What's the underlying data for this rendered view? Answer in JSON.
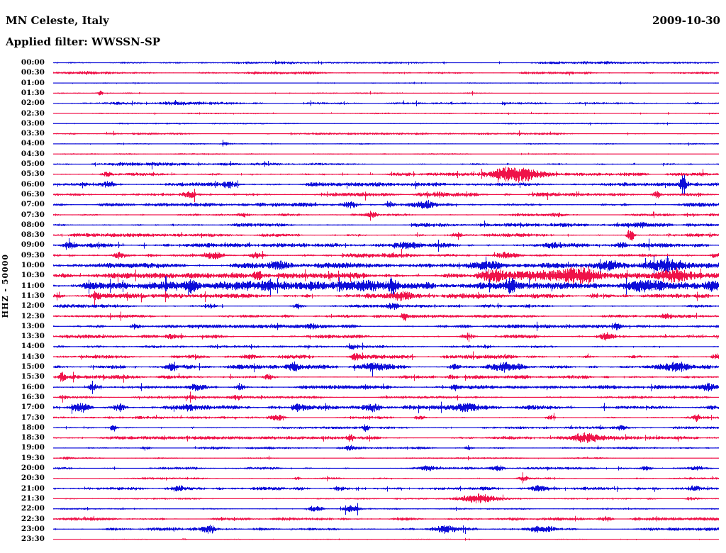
{
  "header": {
    "station": "MN Celeste, Italy",
    "date": "2009-10-30",
    "filter_label": "Applied filter: WWSSN-SP"
  },
  "axis": {
    "channel_label": "HHZ - 50000"
  },
  "chart_data": {
    "type": "line",
    "subtype": "helicorder-dayplot",
    "title": "MN Celeste, Italy",
    "date": "2009-10-30",
    "filter": "WWSSN-SP",
    "channel": "HHZ",
    "scale": 50000,
    "minutes_per_row": 30,
    "rows_count": 48,
    "time_start": "00:00",
    "time_end": "23:30",
    "legend_position": "none",
    "grid": false,
    "colors": {
      "hour_trace": "#0c0cd8",
      "half_hour_trace": "#ef1249",
      "text": "#000000",
      "background": "#ffffff"
    },
    "note": "level = baseline noise half-amplitude (px); events = bursts with t (minutes into row), a (half-amplitude px), w (duration, minutes)",
    "rows": [
      {
        "time": "00:00",
        "color": "blue",
        "level": 0.9,
        "events": [
          {
            "t": 9,
            "a": 1.2,
            "w": 3
          },
          {
            "t": 25,
            "a": 1,
            "w": 4
          }
        ]
      },
      {
        "time": "00:30",
        "color": "red",
        "level": 1.3,
        "events": [
          {
            "t": 1.5,
            "a": 1,
            "w": 2
          }
        ]
      },
      {
        "time": "01:00",
        "color": "blue",
        "level": 0.6,
        "events": []
      },
      {
        "time": "01:30",
        "color": "red",
        "level": 0.7,
        "events": [
          {
            "t": 2.1,
            "a": 3,
            "w": 0.2
          }
        ]
      },
      {
        "time": "02:00",
        "color": "blue",
        "level": 1.0,
        "events": [
          {
            "t": 5,
            "a": 1.2,
            "w": 4
          }
        ]
      },
      {
        "time": "02:30",
        "color": "red",
        "level": 0.7,
        "events": []
      },
      {
        "time": "03:00",
        "color": "blue",
        "level": 0.7,
        "events": []
      },
      {
        "time": "03:30",
        "color": "red",
        "level": 1.1,
        "events": []
      },
      {
        "time": "04:00",
        "color": "blue",
        "level": 0.7,
        "events": [
          {
            "t": 7.7,
            "a": 2,
            "w": 0.3
          }
        ]
      },
      {
        "time": "04:30",
        "color": "red",
        "level": 0.7,
        "events": []
      },
      {
        "time": "05:00",
        "color": "blue",
        "level": 1.2,
        "events": [
          {
            "t": 4,
            "a": 1,
            "w": 3
          }
        ]
      },
      {
        "time": "05:30",
        "color": "red",
        "level": 1.5,
        "events": [
          {
            "t": 2.4,
            "a": 2.5,
            "w": 0.3
          },
          {
            "t": 20.9,
            "a": 11,
            "w": 1.4
          }
        ]
      },
      {
        "time": "06:00",
        "color": "blue",
        "level": 1.8,
        "events": [
          {
            "t": 2.4,
            "a": 3,
            "w": 0.4
          },
          {
            "t": 8,
            "a": 4,
            "w": 0.5
          },
          {
            "t": 28.4,
            "a": 9,
            "w": 0.25
          }
        ]
      },
      {
        "time": "06:30",
        "color": "red",
        "level": 1.8,
        "events": [
          {
            "t": 6.1,
            "a": 3.5,
            "w": 0.4
          },
          {
            "t": 17.3,
            "a": 3,
            "w": 0.4
          },
          {
            "t": 27.2,
            "a": 6,
            "w": 0.25
          }
        ]
      },
      {
        "time": "07:00",
        "color": "blue",
        "level": 1.8,
        "events": [
          {
            "t": 13.4,
            "a": 4,
            "w": 0.5
          },
          {
            "t": 15.2,
            "a": 3.5,
            "w": 0.4
          },
          {
            "t": 16.8,
            "a": 6,
            "w": 0.8
          }
        ]
      },
      {
        "time": "07:30",
        "color": "red",
        "level": 1.3,
        "events": [
          {
            "t": 8.5,
            "a": 2,
            "w": 0.4
          },
          {
            "t": 14.4,
            "a": 2.5,
            "w": 0.4
          },
          {
            "t": 22.7,
            "a": 2,
            "w": 0.4
          }
        ]
      },
      {
        "time": "08:00",
        "color": "blue",
        "level": 1.6,
        "events": [
          {
            "t": 22,
            "a": 1.5,
            "w": 5
          },
          {
            "t": 26.5,
            "a": 3,
            "w": 0.4
          }
        ]
      },
      {
        "time": "08:30",
        "color": "red",
        "level": 1.7,
        "events": [
          {
            "t": 1,
            "a": 2.5,
            "w": 0.4
          },
          {
            "t": 18.1,
            "a": 3,
            "w": 0.4
          },
          {
            "t": 26,
            "a": 12,
            "w": 0.2
          }
        ]
      },
      {
        "time": "09:00",
        "color": "blue",
        "level": 2.0,
        "events": [
          {
            "t": 0.8,
            "a": 3,
            "w": 0.4
          },
          {
            "t": 16,
            "a": 5,
            "w": 0.8
          },
          {
            "t": 22.5,
            "a": 3,
            "w": 0.5
          },
          {
            "t": 25.7,
            "a": 3,
            "w": 0.5
          }
        ]
      },
      {
        "time": "09:30",
        "color": "red",
        "level": 2.0,
        "events": [
          {
            "t": 3,
            "a": 4,
            "w": 0.5
          },
          {
            "t": 7.2,
            "a": 5,
            "w": 0.6
          },
          {
            "t": 9.1,
            "a": 4,
            "w": 0.4
          },
          {
            "t": 20.4,
            "a": 4,
            "w": 0.8
          },
          {
            "t": 29.8,
            "a": 3,
            "w": 0.3
          }
        ]
      },
      {
        "time": "10:00",
        "color": "blue",
        "level": 2.5,
        "events": [
          {
            "t": 10.1,
            "a": 4,
            "w": 0.6
          },
          {
            "t": 19.6,
            "a": 4,
            "w": 0.8
          },
          {
            "t": 25.1,
            "a": 7,
            "w": 1
          },
          {
            "t": 27.6,
            "a": 8,
            "w": 1.2
          }
        ]
      },
      {
        "time": "10:30",
        "color": "red",
        "level": 2.5,
        "events": [
          {
            "t": 9.2,
            "a": 6,
            "w": 0.25
          },
          {
            "t": 23,
            "a": 5,
            "w": 5
          },
          {
            "t": 19.8,
            "a": 7,
            "w": 0.8
          },
          {
            "t": 23.8,
            "a": 7,
            "w": 0.8
          },
          {
            "t": 28,
            "a": 7,
            "w": 0.9
          }
        ]
      },
      {
        "time": "11:00",
        "color": "blue",
        "level": 3.0,
        "events": [
          {
            "t": 11,
            "a": 5,
            "w": 8
          },
          {
            "t": 6.2,
            "a": 7,
            "w": 0.3
          },
          {
            "t": 15.3,
            "a": 8,
            "w": 0.3
          },
          {
            "t": 20.6,
            "a": 10,
            "w": 0.3
          },
          {
            "t": 26.7,
            "a": 5,
            "w": 1.5
          },
          {
            "t": 29.7,
            "a": 6,
            "w": 0.3
          }
        ]
      },
      {
        "time": "11:30",
        "color": "red",
        "level": 2.2,
        "events": [
          {
            "t": 1.9,
            "a": 3,
            "w": 0.4
          },
          {
            "t": 15.7,
            "a": 4,
            "w": 0.6
          },
          {
            "t": 24.4,
            "a": 3,
            "w": 0.4
          }
        ]
      },
      {
        "time": "12:00",
        "color": "blue",
        "level": 1.5,
        "events": [
          {
            "t": 7,
            "a": 3,
            "w": 0.4
          },
          {
            "t": 11,
            "a": 3,
            "w": 0.4
          },
          {
            "t": 15.3,
            "a": 3.5,
            "w": 0.4
          }
        ]
      },
      {
        "time": "12:30",
        "color": "red",
        "level": 1.4,
        "events": [
          {
            "t": 15.8,
            "a": 6,
            "w": 0.2
          },
          {
            "t": 27.6,
            "a": 2.5,
            "w": 0.4
          }
        ]
      },
      {
        "time": "13:00",
        "color": "blue",
        "level": 1.7,
        "events": [
          {
            "t": 3.7,
            "a": 3,
            "w": 0.4
          },
          {
            "t": 11.7,
            "a": 3,
            "w": 0.4
          },
          {
            "t": 25.4,
            "a": 5,
            "w": 0.2
          }
        ]
      },
      {
        "time": "13:30",
        "color": "red",
        "level": 1.7,
        "events": [
          {
            "t": 5.3,
            "a": 3,
            "w": 0.4
          },
          {
            "t": 18.7,
            "a": 3,
            "w": 0.4
          },
          {
            "t": 24.9,
            "a": 6,
            "w": 0.5
          }
        ]
      },
      {
        "time": "14:00",
        "color": "blue",
        "level": 1.2,
        "events": [
          {
            "t": 13.5,
            "a": 3,
            "w": 0.3
          },
          {
            "t": 19.5,
            "a": 2,
            "w": 0.3
          }
        ]
      },
      {
        "time": "14:30",
        "color": "red",
        "level": 1.8,
        "events": [
          {
            "t": 8.8,
            "a": 4,
            "w": 0.4
          },
          {
            "t": 13.6,
            "a": 4,
            "w": 0.3
          },
          {
            "t": 29.9,
            "a": 4,
            "w": 0.3
          }
        ]
      },
      {
        "time": "15:00",
        "color": "blue",
        "level": 2.0,
        "events": [
          {
            "t": 5.4,
            "a": 6,
            "w": 0.25
          },
          {
            "t": 10.9,
            "a": 4,
            "w": 0.4
          },
          {
            "t": 14.5,
            "a": 5,
            "w": 0.8
          },
          {
            "t": 18.1,
            "a": 4,
            "w": 0.4
          },
          {
            "t": 20.4,
            "a": 6,
            "w": 1.2
          },
          {
            "t": 28,
            "a": 5,
            "w": 0.8
          }
        ]
      },
      {
        "time": "15:30",
        "color": "red",
        "level": 1.8,
        "events": [
          {
            "t": 0.4,
            "a": 7,
            "w": 0.25
          },
          {
            "t": 9.7,
            "a": 5,
            "w": 0.3
          },
          {
            "t": 17.9,
            "a": 3,
            "w": 0.4
          }
        ]
      },
      {
        "time": "16:00",
        "color": "blue",
        "level": 1.8,
        "events": [
          {
            "t": 1.8,
            "a": 4,
            "w": 0.4
          },
          {
            "t": 6.5,
            "a": 4,
            "w": 0.4
          },
          {
            "t": 8.4,
            "a": 6,
            "w": 0.25
          },
          {
            "t": 18.1,
            "a": 4,
            "w": 0.4
          },
          {
            "t": 29.5,
            "a": 4,
            "w": 0.4
          }
        ]
      },
      {
        "time": "16:30",
        "color": "red",
        "level": 1.2,
        "events": [
          {
            "t": 0.5,
            "a": 3,
            "w": 0.3
          },
          {
            "t": 6.2,
            "a": 2.5,
            "w": 0.3
          },
          {
            "t": 8.3,
            "a": 2.5,
            "w": 0.3
          }
        ]
      },
      {
        "time": "17:00",
        "color": "blue",
        "level": 2.0,
        "events": [
          {
            "t": 1.3,
            "a": 6,
            "w": 0.5
          },
          {
            "t": 3,
            "a": 4,
            "w": 0.4
          },
          {
            "t": 6.1,
            "a": 4,
            "w": 0.4
          },
          {
            "t": 11,
            "a": 4,
            "w": 0.5
          },
          {
            "t": 14.4,
            "a": 4,
            "w": 0.4
          },
          {
            "t": 18.8,
            "a": 5,
            "w": 1
          }
        ]
      },
      {
        "time": "17:30",
        "color": "red",
        "level": 1.3,
        "events": [
          {
            "t": 10.1,
            "a": 3,
            "w": 0.4
          },
          {
            "t": 16.5,
            "a": 3,
            "w": 0.4
          },
          {
            "t": 22.4,
            "a": 3.5,
            "w": 0.3
          },
          {
            "t": 29,
            "a": 4,
            "w": 0.2
          }
        ]
      },
      {
        "time": "18:00",
        "color": "blue",
        "level": 1.2,
        "events": [
          {
            "t": 2.7,
            "a": 5,
            "w": 0.2
          },
          {
            "t": 14.1,
            "a": 5,
            "w": 0.2
          },
          {
            "t": 25.6,
            "a": 2.5,
            "w": 0.4
          }
        ]
      },
      {
        "time": "18:30",
        "color": "red",
        "level": 1.5,
        "events": [
          {
            "t": 13.4,
            "a": 4,
            "w": 0.2
          },
          {
            "t": 24,
            "a": 7,
            "w": 1
          }
        ]
      },
      {
        "time": "19:00",
        "color": "blue",
        "level": 1.3,
        "events": [
          {
            "t": 4.2,
            "a": 2.5,
            "w": 0.3
          },
          {
            "t": 13.3,
            "a": 3,
            "w": 0.3
          },
          {
            "t": 18.7,
            "a": 4,
            "w": 0.25
          }
        ]
      },
      {
        "time": "19:30",
        "color": "red",
        "level": 0.8,
        "events": [
          {
            "t": 0.6,
            "a": 2,
            "w": 0.3
          }
        ]
      },
      {
        "time": "20:00",
        "color": "blue",
        "level": 1.2,
        "events": [
          {
            "t": 16.9,
            "a": 3.5,
            "w": 0.4
          },
          {
            "t": 20,
            "a": 3,
            "w": 0.4
          },
          {
            "t": 26.7,
            "a": 3.5,
            "w": 0.4
          },
          {
            "t": 29,
            "a": 2.5,
            "w": 0.3
          }
        ]
      },
      {
        "time": "20:30",
        "color": "red",
        "level": 1.0,
        "events": [
          {
            "t": 11,
            "a": 2,
            "w": 0.3
          },
          {
            "t": 21.2,
            "a": 2.5,
            "w": 0.3
          }
        ]
      },
      {
        "time": "21:00",
        "color": "blue",
        "level": 1.6,
        "events": [
          {
            "t": 5.6,
            "a": 3,
            "w": 0.4
          },
          {
            "t": 12.9,
            "a": 3,
            "w": 0.4
          },
          {
            "t": 21.9,
            "a": 3,
            "w": 0.4
          },
          {
            "t": 28.9,
            "a": 3,
            "w": 0.4
          }
        ]
      },
      {
        "time": "21:30",
        "color": "red",
        "level": 0.9,
        "events": [
          {
            "t": 19.2,
            "a": 6,
            "w": 1.1
          },
          {
            "t": 28.8,
            "a": 2,
            "w": 0.5
          }
        ]
      },
      {
        "time": "22:00",
        "color": "blue",
        "level": 0.8,
        "events": [
          {
            "t": 11.8,
            "a": 4,
            "w": 0.5
          },
          {
            "t": 13.4,
            "a": 4.5,
            "w": 0.5
          }
        ]
      },
      {
        "time": "22:30",
        "color": "red",
        "level": 1.5,
        "events": [
          {
            "t": 24.9,
            "a": 3,
            "w": 0.4
          }
        ]
      },
      {
        "time": "23:00",
        "color": "blue",
        "level": 1.5,
        "events": [
          {
            "t": 7,
            "a": 5,
            "w": 0.4
          },
          {
            "t": 17.7,
            "a": 5,
            "w": 0.8
          },
          {
            "t": 22,
            "a": 4.5,
            "w": 0.8
          }
        ]
      },
      {
        "time": "23:30",
        "color": "red",
        "level": 0.5,
        "events": [
          {
            "t": 5.9,
            "a": 1.5,
            "w": 0.15
          }
        ]
      }
    ]
  }
}
